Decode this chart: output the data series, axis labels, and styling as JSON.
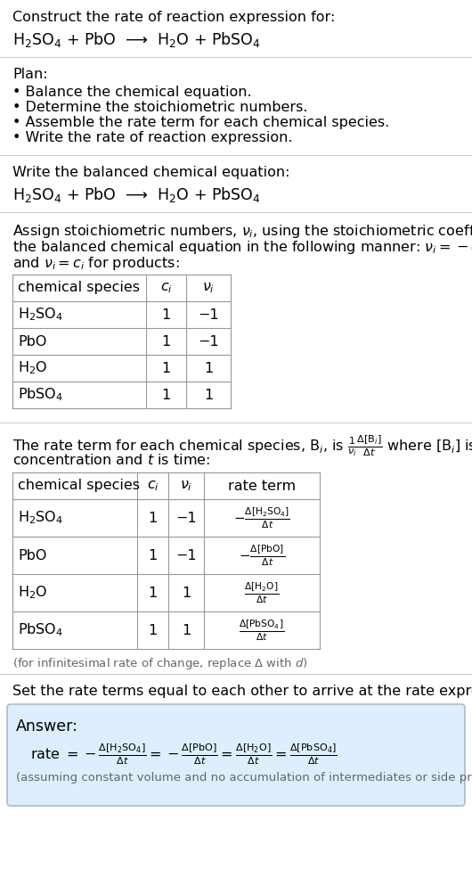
{
  "bg_color": "#ffffff",
  "text_color": "#000000",
  "gray_text": "#666666",
  "divider_color": "#cccccc",
  "table_line_color": "#999999",
  "answer_box_color": "#ddeeff",
  "answer_box_edge": "#aabbcc",
  "section1_title": "Construct the rate of reaction expression for:",
  "section1_eq": "H$_2$SO$_4$ + PbO  ⟶  H$_2$O + PbSO$_4$",
  "plan_title": "Plan:",
  "plan_bullets": [
    "• Balance the chemical equation.",
    "• Determine the stoichiometric numbers.",
    "• Assemble the rate term for each chemical species.",
    "• Write the rate of reaction expression."
  ],
  "section2_title": "Write the balanced chemical equation:",
  "section2_eq": "H$_2$SO$_4$ + PbO  ⟶  H$_2$O + PbSO$_4$",
  "section3_line1": "Assign stoichiometric numbers, $\\nu_i$, using the stoichiometric coefficients, $c_i$, from",
  "section3_line2": "the balanced chemical equation in the following manner: $\\nu_i = -c_i$ for reactants",
  "section3_line3": "and $\\nu_i = c_i$ for products:",
  "table1_headers": [
    "chemical species",
    "$c_i$",
    "$\\nu_i$"
  ],
  "table1_rows": [
    [
      "H$_2$SO$_4$",
      "1",
      "−1"
    ],
    [
      "PbO",
      "1",
      "−1"
    ],
    [
      "H$_2$O",
      "1",
      "1"
    ],
    [
      "PbSO$_4$",
      "1",
      "1"
    ]
  ],
  "section4_line1": "The rate term for each chemical species, B$_i$, is $\\frac{1}{\\nu_i}\\frac{\\Delta[\\mathrm{B}_i]}{\\Delta t}$ where [B$_i$] is the amount",
  "section4_line2": "concentration and $t$ is time:",
  "table2_headers": [
    "chemical species",
    "$c_i$",
    "$\\nu_i$",
    "rate term"
  ],
  "table2_rows": [
    [
      "H$_2$SO$_4$",
      "1",
      "−1",
      "$-\\frac{\\Delta[\\mathrm{H_2SO_4}]}{\\Delta t}$"
    ],
    [
      "PbO",
      "1",
      "−1",
      "$-\\frac{\\Delta[\\mathrm{PbO}]}{\\Delta t}$"
    ],
    [
      "H$_2$O",
      "1",
      "1",
      "$\\frac{\\Delta[\\mathrm{H_2O}]}{\\Delta t}$"
    ],
    [
      "PbSO$_4$",
      "1",
      "1",
      "$\\frac{\\Delta[\\mathrm{PbSO_4}]}{\\Delta t}$"
    ]
  ],
  "infinitesimal_note": "(for infinitesimal rate of change, replace Δ with $d$)",
  "section5_intro": "Set the rate terms equal to each other to arrive at the rate expression:",
  "answer_label": "Answer:",
  "answer_eq_parts": [
    "rate $= -\\frac{\\Delta[\\mathrm{H_2SO_4}]}{\\Delta t} = -\\frac{\\Delta[\\mathrm{PbO}]}{\\Delta t} = \\frac{\\Delta[\\mathrm{H_2O}]}{\\Delta t} = \\frac{\\Delta[\\mathrm{PbSO_4}]}{\\Delta t}$"
  ],
  "answer_note": "(assuming constant volume and no accumulation of intermediates or side products)"
}
